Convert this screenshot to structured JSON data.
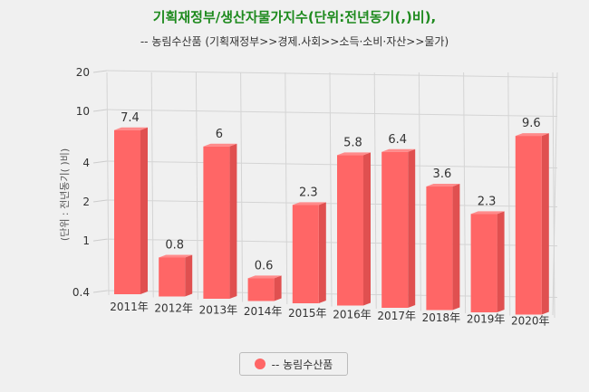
{
  "chart_data": {
    "type": "bar",
    "title": "기획재정부/생산자물가지수(단위:전년동기(,)비),",
    "subtitle": "-- 농림수산품 (기획재정부>>경제.사회>>소득·소비·자산>>물가)",
    "ylabel": "(단위 : 전년동기( )비)",
    "xlabel": "",
    "yscale": "log",
    "ylim": [
      0.4,
      20
    ],
    "yticks": [
      0.4,
      1,
      2,
      4,
      10,
      20
    ],
    "categories": [
      "2011年",
      "2012年",
      "2013年",
      "2014年",
      "2015年",
      "2016年",
      "2017年",
      "2018年",
      "2019年",
      "2020年"
    ],
    "series": [
      {
        "name": "-- 농림수산품",
        "values": [
          7.4,
          0.8,
          6,
          0.6,
          2.3,
          5.8,
          6.4,
          3.6,
          2.3,
          9.6
        ],
        "color": "#ff6666"
      }
    ],
    "data_labels": [
      "7.4",
      "0.8",
      "6",
      "0.6",
      "2.3",
      "5.8",
      "6.4",
      "3.6",
      "2.3",
      "9.6"
    ],
    "grid": true,
    "legend_position": "bottom",
    "style": "3d"
  }
}
